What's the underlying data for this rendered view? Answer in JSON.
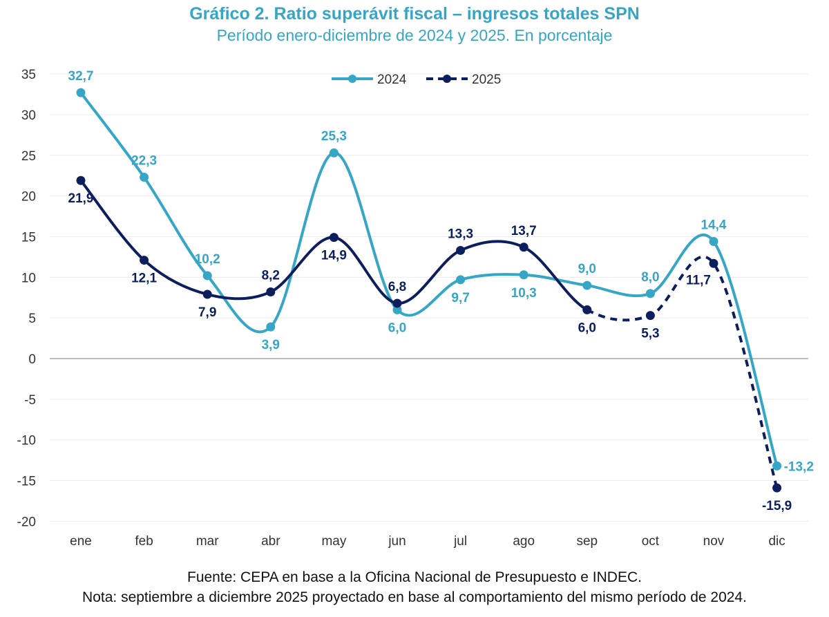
{
  "chart_data": {
    "type": "line",
    "title": "Gráfico 2. Ratio superávit fiscal – ingresos totales SPN",
    "subtitle": "Período enero-diciembre de 2024 y 2025. En porcentaje",
    "categories": [
      "ene",
      "feb",
      "mar",
      "abr",
      "may",
      "jun",
      "jul",
      "ago",
      "sep",
      "oct",
      "nov",
      "dic"
    ],
    "series": [
      {
        "name": "2024",
        "color": "#36a6c6",
        "values": [
          32.7,
          22.3,
          10.2,
          3.9,
          25.3,
          6.0,
          9.7,
          10.3,
          9.0,
          8.0,
          14.4,
          -13.2
        ],
        "labels": [
          "32,7",
          "22,3",
          "10,2",
          "3,9",
          "25,3",
          "6,0",
          "9,7",
          "10,3",
          "9,0",
          "8,0",
          "14,4",
          "-13,2"
        ]
      },
      {
        "name": "2025",
        "color": "#0c1f5c",
        "values": [
          21.9,
          12.1,
          7.9,
          8.2,
          14.9,
          6.8,
          13.3,
          13.7,
          6.0,
          5.3,
          11.7,
          -15.9
        ],
        "labels": [
          "21,9",
          "12,1",
          "7,9",
          "8,2",
          "14,9",
          "6,8",
          "13,3",
          "13,7",
          "6,0",
          "5,3",
          "11,7",
          "-15,9"
        ],
        "projected_from": "sep"
      }
    ],
    "ylim": [
      -20,
      35
    ],
    "yticks": [
      35,
      30,
      25,
      20,
      15,
      10,
      5,
      0,
      -5,
      -10,
      -15,
      -20
    ],
    "grid": true,
    "legend": "top-center"
  },
  "footer": {
    "source": "Fuente: CEPA en base a la Oficina Nacional de Presupuesto e INDEC.",
    "note": "Nota: septiembre a diciembre 2025 proyectado en base al comportamiento del mismo período de 2024."
  }
}
